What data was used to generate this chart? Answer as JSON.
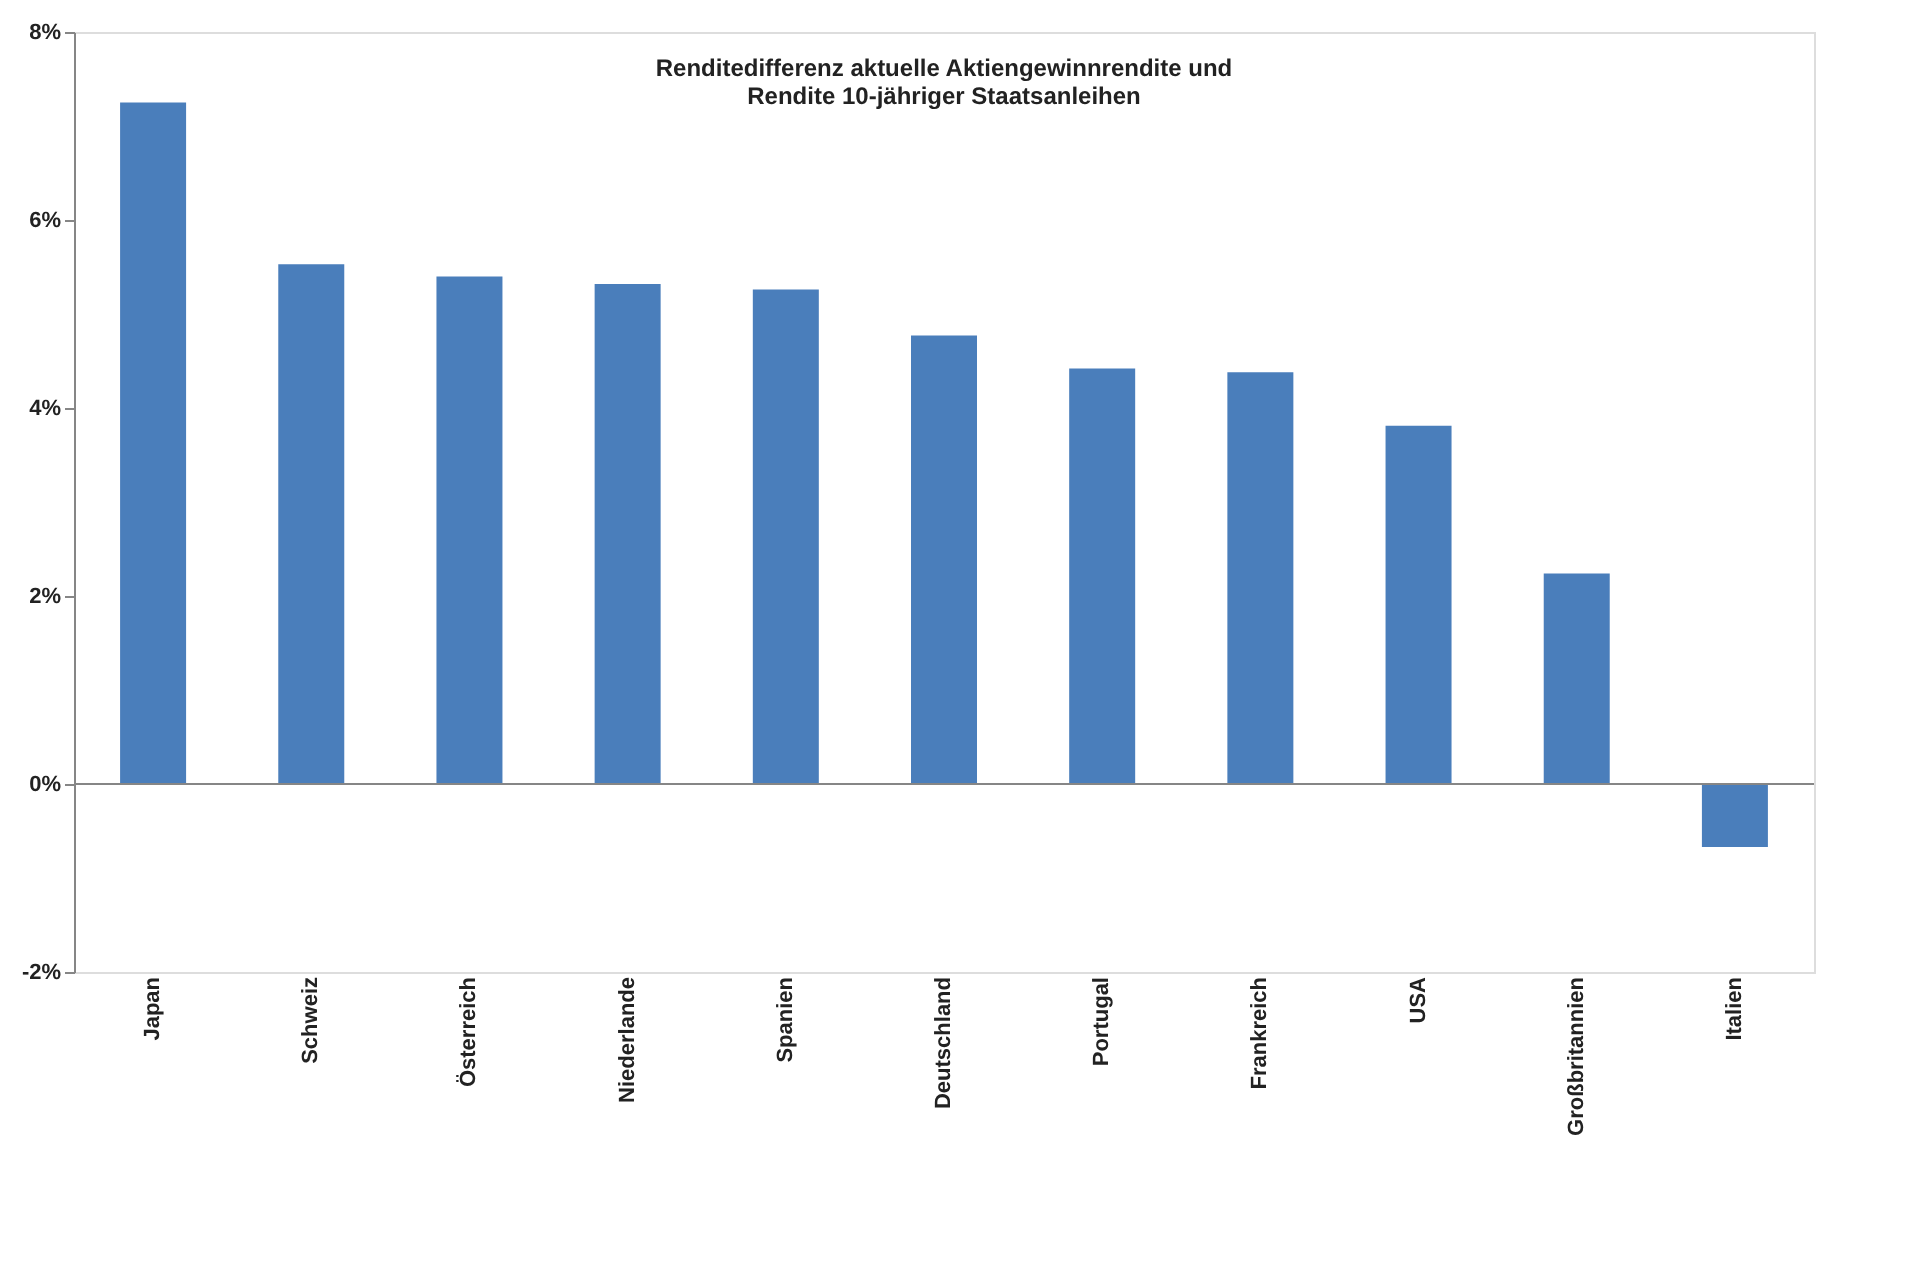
{
  "chart_data": {
    "type": "bar",
    "title": "Renditedifferenz aktuelle Aktiengewinnrendite und\nRendite 10-jähriger Staatsanleihen",
    "categories": [
      "Japan",
      "Schweiz",
      "Österreich",
      "Niederlande",
      "Spanien",
      "Deutschland",
      "Portugal",
      "Frankreich",
      "USA",
      "Großbritannien",
      "Italien"
    ],
    "values": [
      7.25,
      5.53,
      5.4,
      5.32,
      5.26,
      4.77,
      4.42,
      4.38,
      3.81,
      2.24,
      -0.67
    ],
    "color": "#4a7ebb",
    "ylim": [
      -2,
      8
    ],
    "yticks": [
      {
        "value": -2,
        "label": "-2%"
      },
      {
        "value": 0,
        "label": "0%"
      },
      {
        "value": 2,
        "label": "2%"
      },
      {
        "value": 4,
        "label": "4%"
      },
      {
        "value": 6,
        "label": "6%"
      },
      {
        "value": 8,
        "label": "8%"
      }
    ],
    "ref_lines": [
      {
        "axis": "y",
        "value": 0,
        "color": "#868686"
      }
    ],
    "grid": false
  }
}
